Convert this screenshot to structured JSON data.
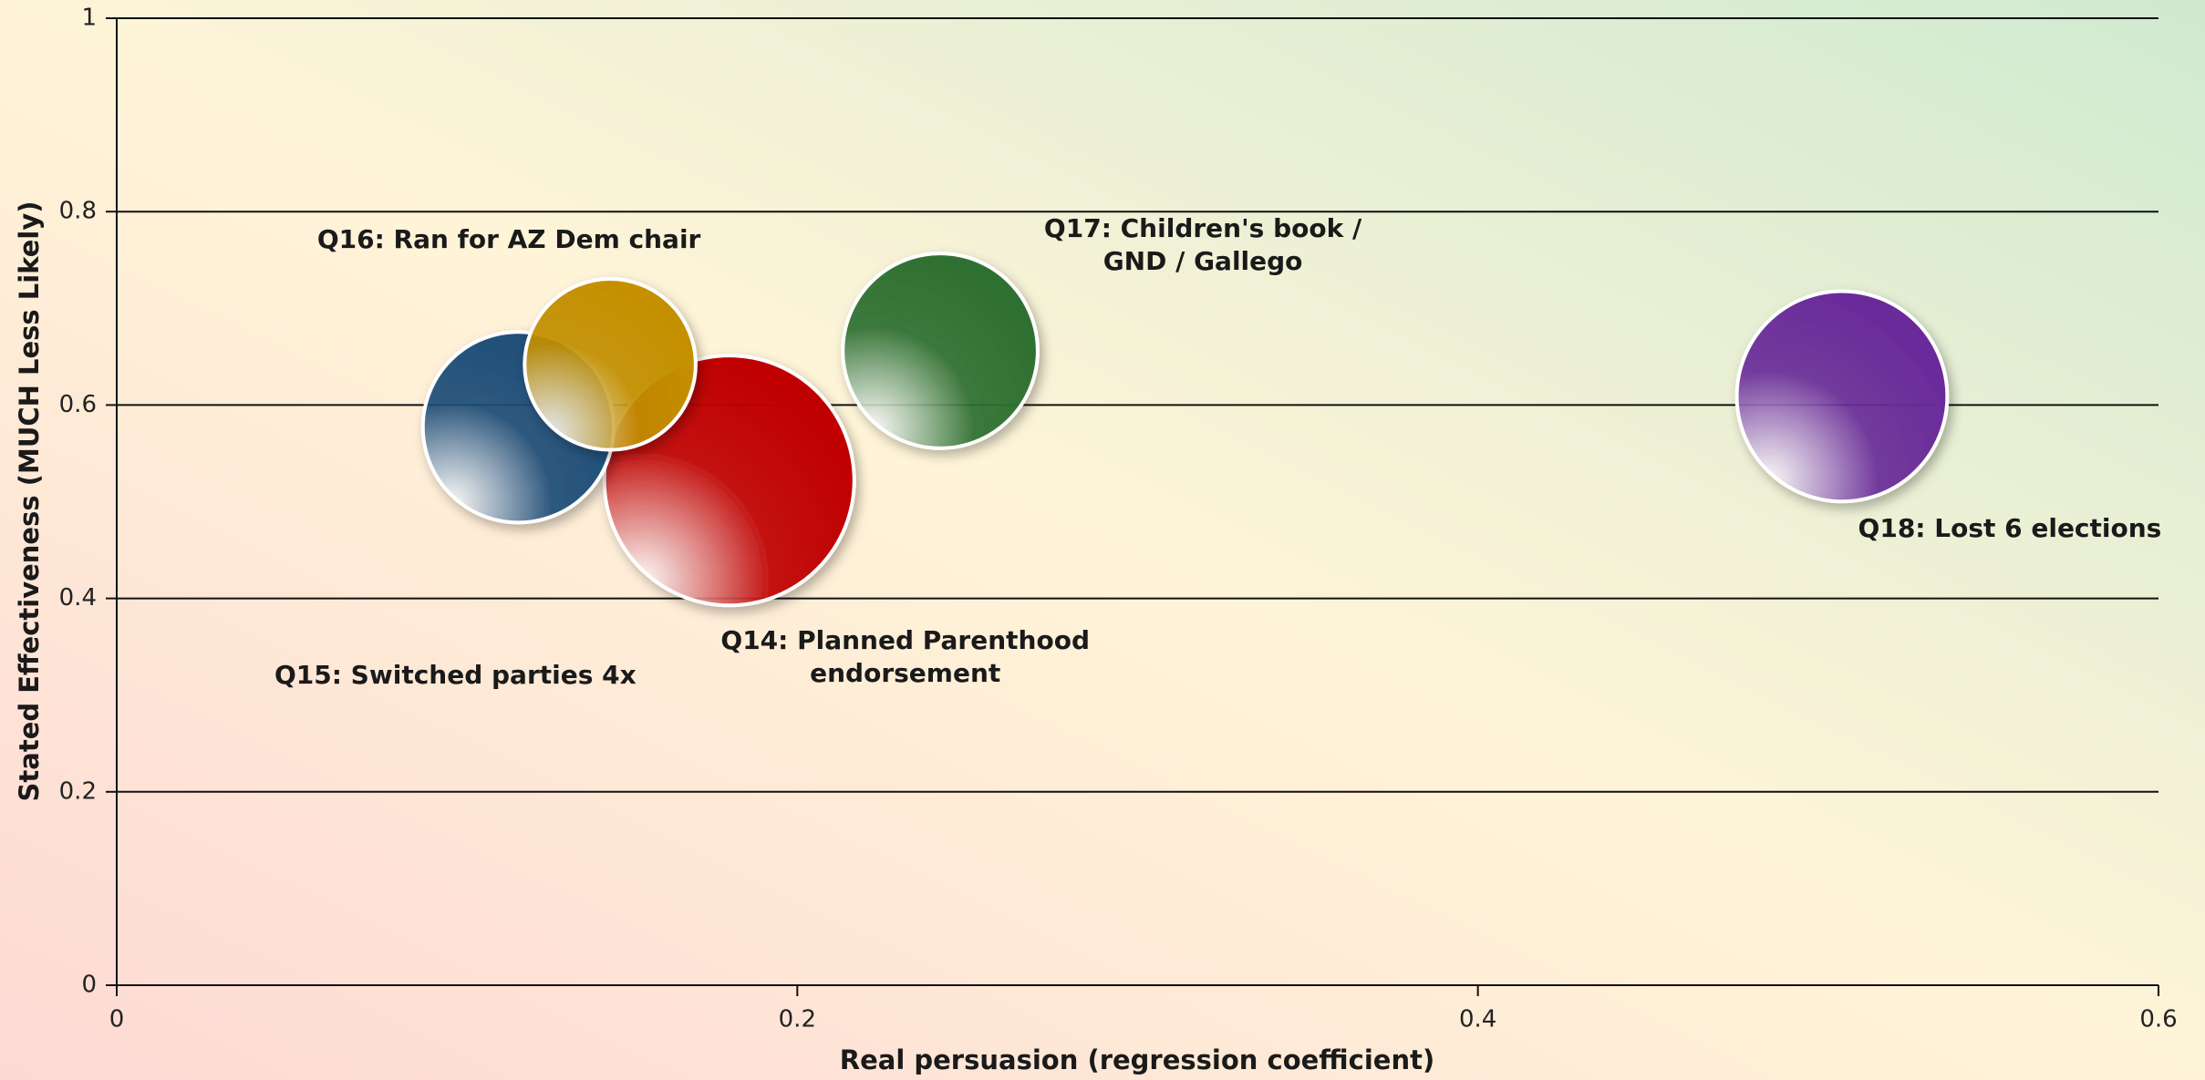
{
  "chart_data": {
    "type": "scatter",
    "xlabel": "Real persuasion (regression coefficient)",
    "ylabel": "Stated Effectiveness (MUCH Less Likely)",
    "labels": [
      "Q14: Planned Parenthood endorsement",
      "Q15: Switched parties 4x",
      "Q16: Ran for AZ Dem chair",
      "Q17: Children's book / GND / Gallego",
      "Q18: Lost 6 elections"
    ],
    "x": [
      0.18,
      0.118,
      0.145,
      0.242,
      0.507
    ],
    "values": [
      0.522,
      0.577,
      0.642,
      0.656,
      0.609
    ],
    "sizes": [
      79,
      46,
      37,
      48,
      56
    ],
    "colors": [
      "#c00000",
      "#1f4e79",
      "#c49000",
      "#2e7030",
      "#6a2c9a"
    ],
    "xlim": [
      0,
      0.6
    ],
    "xticks": [
      0,
      0.2,
      0.4,
      0.6
    ],
    "ylim": [
      0,
      1
    ],
    "yticks": [
      0,
      0.2,
      0.4,
      0.6,
      0.8,
      1
    ],
    "grid": true
  }
}
